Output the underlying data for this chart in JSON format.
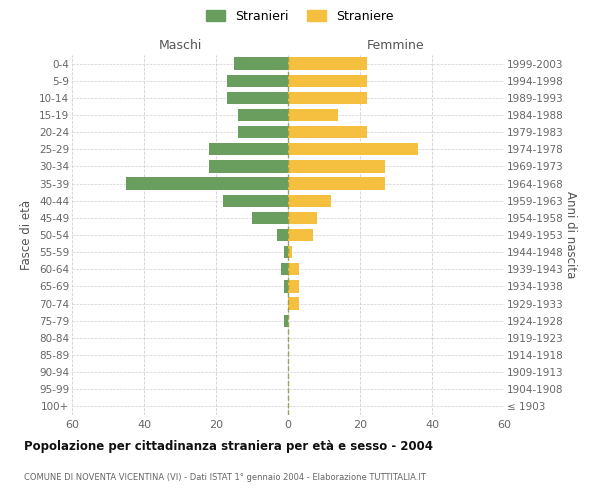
{
  "age_groups": [
    "0-4",
    "5-9",
    "10-14",
    "15-19",
    "20-24",
    "25-29",
    "30-34",
    "35-39",
    "40-44",
    "45-49",
    "50-54",
    "55-59",
    "60-64",
    "65-69",
    "70-74",
    "75-79",
    "80-84",
    "85-89",
    "90-94",
    "95-99",
    "100+"
  ],
  "birth_years": [
    "1999-2003",
    "1994-1998",
    "1989-1993",
    "1984-1988",
    "1979-1983",
    "1974-1978",
    "1969-1973",
    "1964-1968",
    "1959-1963",
    "1954-1958",
    "1949-1953",
    "1944-1948",
    "1939-1943",
    "1934-1938",
    "1929-1933",
    "1924-1928",
    "1919-1923",
    "1914-1918",
    "1909-1913",
    "1904-1908",
    "≤ 1903"
  ],
  "maschi": [
    15,
    17,
    17,
    14,
    14,
    22,
    22,
    45,
    18,
    10,
    3,
    1,
    2,
    1,
    0,
    1,
    0,
    0,
    0,
    0,
    0
  ],
  "femmine": [
    22,
    22,
    22,
    14,
    22,
    36,
    27,
    27,
    12,
    8,
    7,
    1,
    3,
    3,
    3,
    0,
    0,
    0,
    0,
    0,
    0
  ],
  "color_maschi": "#6a9e5e",
  "color_femmine": "#f5c040",
  "background_color": "#ffffff",
  "grid_color": "#cccccc",
  "title": "Popolazione per cittadinanza straniera per età e sesso - 2004",
  "subtitle": "COMUNE DI NOVENTA VICENTINA (VI) - Dati ISTAT 1° gennaio 2004 - Elaborazione TUTTITALIA.IT",
  "ylabel_left": "Fasce di età",
  "ylabel_right": "Anni di nascita",
  "xlabel_maschi": "Maschi",
  "xlabel_femmine": "Femmine",
  "legend_maschi": "Stranieri",
  "legend_femmine": "Straniere",
  "xlim": 60,
  "bar_height": 0.72
}
